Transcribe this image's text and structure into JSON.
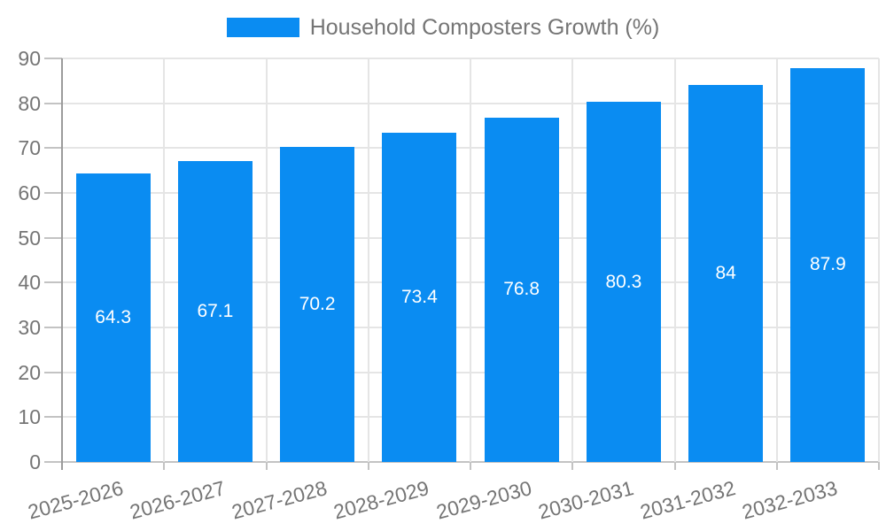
{
  "colors": {
    "bar": "#0a8cf2",
    "grid": "#e5e5e5",
    "grid_bottom": "#c3c3c3",
    "tick": "#c3c3c3",
    "axis_line": "#9b9b9b",
    "text": "#757575",
    "value_label": "#ffffff",
    "background": "#ffffff"
  },
  "chart_data": {
    "type": "bar",
    "title": "Household Composters Growth (%)",
    "categories": [
      "2025-2026",
      "2026-2027",
      "2027-2028",
      "2028-2029",
      "2029-2030",
      "2030-2031",
      "2031-2032",
      "2032-2033"
    ],
    "series": [
      {
        "name": "Household Composters Growth (%)",
        "values": [
          64.3,
          67.1,
          70.2,
          73.4,
          76.8,
          80.3,
          84,
          87.9
        ]
      }
    ],
    "xlabel": "",
    "ylabel": "",
    "ylim": [
      0,
      90
    ],
    "ytick_step": 10,
    "yticks": [
      0,
      10,
      20,
      30,
      40,
      50,
      60,
      70,
      80,
      90
    ],
    "grid": true,
    "legend_position": "top-center",
    "value_label_position": "inside-middle",
    "x_tick_label_rotation_deg": -15
  }
}
